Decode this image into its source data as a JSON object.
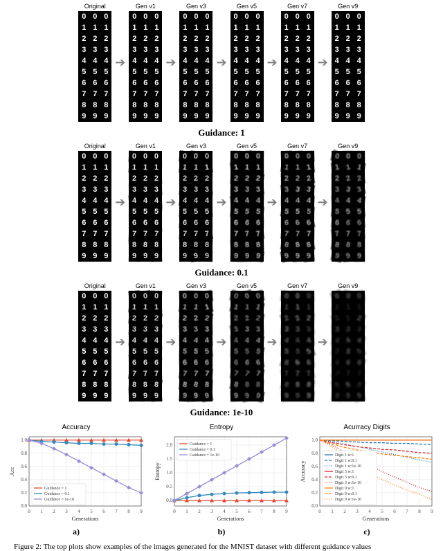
{
  "panels": {
    "labels": [
      "Original",
      "Gen v1",
      "Gen v3",
      "Gen v5",
      "Gen v7",
      "Gen v9"
    ],
    "arrow_color": "#808080",
    "sections": [
      {
        "title": "Guidance: 1",
        "noise": 0.0
      },
      {
        "title": "Guidance: 0.1",
        "noise": 0.35
      },
      {
        "title": "Guidance: 1e-10",
        "noise": 0.65
      }
    ],
    "digit_rows": 10
  },
  "charts": {
    "bg": "#ffffff",
    "grid_color": "#e0e0e0",
    "axis_color": "#444444",
    "tick_fontsize": 7,
    "axis_label_fontsize": 8,
    "title_fontsize": 10,
    "xticks": [
      0,
      1,
      2,
      3,
      4,
      5,
      6,
      7,
      8,
      9
    ],
    "xlabel": "Generations",
    "legend_fontsize": 6,
    "a": {
      "title": "Accuracy",
      "ylabel": "Acc",
      "ylim": [
        0,
        1.05
      ],
      "yticks": [
        0.0,
        0.2,
        0.4,
        0.6,
        0.8,
        1.0
      ],
      "series": [
        {
          "label": "Guidance = 1",
          "color": "#e24a33",
          "marker": "triangle",
          "y": [
            1.0,
            1.0,
            1.0,
            1.0,
            1.0,
            1.0,
            1.0,
            1.0,
            1.0,
            1.0
          ]
        },
        {
          "label": "Guidance = 0.1",
          "color": "#348abd",
          "marker": "circle",
          "y": [
            1.0,
            0.98,
            0.97,
            0.96,
            0.95,
            0.95,
            0.94,
            0.94,
            0.93,
            0.92
          ]
        },
        {
          "label": "Guidance = 1e-10",
          "color": "#988ed5",
          "marker": "diamond",
          "y": [
            1.0,
            0.95,
            0.87,
            0.78,
            0.68,
            0.58,
            0.48,
            0.38,
            0.28,
            0.2
          ]
        }
      ],
      "legend_pos": "bottom-left"
    },
    "b": {
      "title": "Entropy",
      "ylabel": "Entropy",
      "ylim": [
        -0.2,
        2.3
      ],
      "yticks": [
        0.0,
        0.5,
        1.0,
        1.5,
        2.0
      ],
      "series": [
        {
          "label": "Guidance = 1",
          "color": "#e24a33",
          "marker": "triangle",
          "y": [
            0.0,
            0.0,
            0.0,
            0.0,
            0.0,
            0.0,
            0.0,
            0.0,
            0.0,
            0.0
          ]
        },
        {
          "label": "Guidance = 0.1",
          "color": "#348abd",
          "marker": "circle",
          "y": [
            0.0,
            0.1,
            0.18,
            0.22,
            0.25,
            0.27,
            0.28,
            0.29,
            0.3,
            0.3
          ]
        },
        {
          "label": "Guidance = 1e-10",
          "color": "#988ed5",
          "marker": "diamond",
          "y": [
            0.0,
            0.25,
            0.5,
            0.75,
            1.0,
            1.25,
            1.5,
            1.75,
            2.0,
            2.25
          ]
        }
      ],
      "legend_pos": "top-left"
    },
    "c": {
      "title": "Acurracy Digits",
      "ylabel": "Accuracy",
      "ylim": [
        0,
        1.05
      ],
      "yticks": [
        0.0,
        0.2,
        0.4,
        0.6,
        0.8,
        1.0
      ],
      "legend_pos": "bottom-left",
      "series": [
        {
          "label": "Digit 1 w:1",
          "color": "#1f77b4",
          "dash": "",
          "y": [
            1.0,
            1.0,
            1.0,
            1.0,
            1.0,
            1.0,
            1.0,
            1.0,
            1.0,
            1.0
          ]
        },
        {
          "label": "Digit 1 w:0.1",
          "color": "#1f77b4",
          "dash": "4,2",
          "y": [
            1.0,
            0.99,
            0.98,
            0.97,
            0.96,
            0.96,
            0.95,
            0.95,
            0.94,
            0.93
          ]
        },
        {
          "label": "Digit 1 w:1e-10",
          "color": "#1f77b4",
          "dash": "1,2",
          "y": [
            1.0,
            0.97,
            0.94,
            0.9,
            0.86,
            0.82,
            0.78,
            0.74,
            0.7,
            0.66
          ]
        },
        {
          "label": "Digit 3 w:1",
          "color": "#d62728",
          "dash": "",
          "y": [
            1.0,
            1.0,
            1.0,
            1.0,
            1.0,
            1.0,
            1.0,
            1.0,
            1.0,
            1.0
          ]
        },
        {
          "label": "Digit 3 w:0.1",
          "color": "#d62728",
          "dash": "4,2",
          "y": [
            1.0,
            0.96,
            0.93,
            0.9,
            0.88,
            0.86,
            0.85,
            0.83,
            0.81,
            0.8
          ]
        },
        {
          "label": "Digit 3 w:1e-10",
          "color": "#d62728",
          "dash": "1,2",
          "y": [
            1.0,
            0.92,
            0.82,
            0.72,
            0.62,
            0.52,
            0.44,
            0.36,
            0.28,
            0.22
          ]
        },
        {
          "label": "Digit 9 w:1",
          "color": "#ff7f0e",
          "dash": "",
          "y": [
            1.0,
            1.0,
            1.0,
            1.0,
            1.0,
            1.0,
            1.0,
            1.0,
            1.0,
            1.0
          ]
        },
        {
          "label": "Digit 9 w:0.1",
          "color": "#ff7f0e",
          "dash": "4,2",
          "y": [
            1.0,
            0.94,
            0.89,
            0.85,
            0.82,
            0.79,
            0.77,
            0.75,
            0.73,
            0.71
          ]
        },
        {
          "label": "Digit 9 w:1e-10",
          "color": "#ff7f0e",
          "dash": "1,2",
          "y": [
            1.0,
            0.9,
            0.76,
            0.62,
            0.5,
            0.4,
            0.32,
            0.24,
            0.18,
            0.1
          ]
        }
      ]
    },
    "letters": [
      "a)",
      "b)",
      "c)"
    ]
  },
  "caption": "Figure 2: The top plots show examples of the images generated for the MNIST dataset with different guidance values"
}
